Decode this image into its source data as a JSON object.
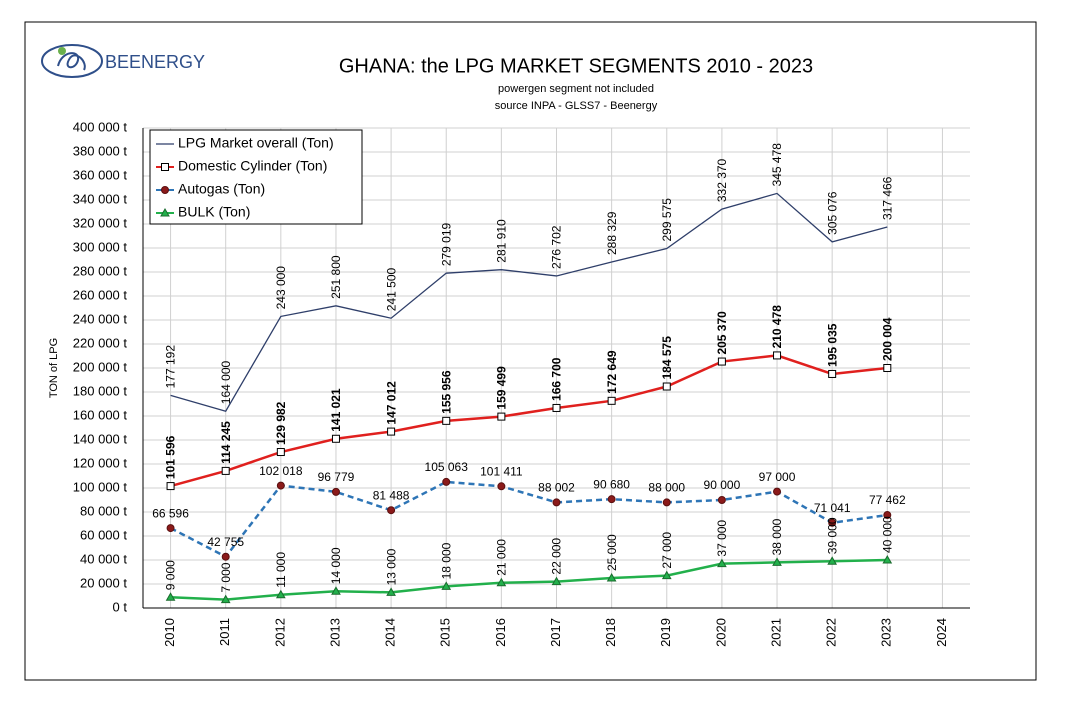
{
  "brand": "BEENERGY",
  "chart_data": {
    "type": "line",
    "title": "GHANA: the LPG MARKET SEGMENTS 2010 - 2023",
    "subtitle": "powergen segment not included",
    "source": "source INPA - GLSS7 - Beenergy",
    "ylabel": "TON of LPG",
    "categories": [
      "2010",
      "2011",
      "2012",
      "2013",
      "2014",
      "2015",
      "2016",
      "2017",
      "2018",
      "2019",
      "2020",
      "2021",
      "2022",
      "2023",
      "2024"
    ],
    "ylim": [
      0,
      400000
    ],
    "yticks": [
      {
        "value": 0,
        "label": "0 t"
      },
      {
        "value": 20000,
        "label": "20 000 t"
      },
      {
        "value": 40000,
        "label": "40 000 t"
      },
      {
        "value": 60000,
        "label": "60 000 t"
      },
      {
        "value": 80000,
        "label": "80 000 t"
      },
      {
        "value": 100000,
        "label": "100 000 t"
      },
      {
        "value": 120000,
        "label": "120 000 t"
      },
      {
        "value": 140000,
        "label": "140 000 t"
      },
      {
        "value": 160000,
        "label": "160 000 t"
      },
      {
        "value": 180000,
        "label": "180 000 t"
      },
      {
        "value": 200000,
        "label": "200 000 t"
      },
      {
        "value": 220000,
        "label": "220 000 t"
      },
      {
        "value": 240000,
        "label": "240 000 t"
      },
      {
        "value": 260000,
        "label": "260 000 t"
      },
      {
        "value": 280000,
        "label": "280 000 t"
      },
      {
        "value": 300000,
        "label": "300 000 t"
      },
      {
        "value": 320000,
        "label": "320 000 t"
      },
      {
        "value": 340000,
        "label": "340 000 t"
      },
      {
        "value": 360000,
        "label": "360 000 t"
      },
      {
        "value": 380000,
        "label": "380 000 t"
      },
      {
        "value": 400000,
        "label": "400 000 t"
      }
    ],
    "grid": true,
    "legend": "upper left",
    "series": [
      {
        "name": "LPG Market overall (Ton)",
        "color": "#2f3f6a",
        "marker": "none",
        "line_style": "solid",
        "values": [
          177192,
          164000,
          243000,
          251800,
          241500,
          279019,
          281910,
          276702,
          288329,
          299575,
          332370,
          345478,
          305076,
          317466,
          null
        ],
        "value_labels": [
          "177 192",
          "164 000",
          "243 000",
          "251 800",
          "241 500",
          "279 019",
          "281 910",
          "276 702",
          "288 329",
          "299 575",
          "332 370",
          "345 478",
          "305 076",
          "317 466",
          null
        ]
      },
      {
        "name": "Domestic Cylinder (Ton)",
        "color": "#e0201e",
        "marker": "square",
        "line_style": "solid",
        "values": [
          101596,
          114245,
          129982,
          141021,
          147012,
          155956,
          159499,
          166700,
          172649,
          184575,
          205370,
          210478,
          195035,
          200004,
          null
        ],
        "value_labels": [
          "101 596",
          "114 245",
          "129 982",
          "141 021",
          "147 012",
          "155 956",
          "159 499",
          "166 700",
          "172 649",
          "184 575",
          "205 370",
          "210 478",
          "195 035",
          "200 004",
          null
        ]
      },
      {
        "name": "Autogas (Ton)",
        "color": "#2e75b6",
        "marker": "circle",
        "line_style": "dashed",
        "values": [
          66596,
          42755,
          102018,
          96779,
          81488,
          105063,
          101411,
          88002,
          90680,
          88000,
          90000,
          97000,
          71041,
          77462,
          null
        ],
        "value_labels": [
          "66 596",
          "42 755",
          "102 018",
          "96 779",
          "81 488",
          "105 063",
          "101 411",
          "88 002",
          "90 680",
          "88 000",
          "90 000",
          "97 000",
          "71 041",
          "77 462",
          null
        ]
      },
      {
        "name": "BULK (Ton)",
        "color": "#22b04b",
        "marker": "triangle",
        "line_style": "solid",
        "values": [
          9000,
          7000,
          11000,
          14000,
          13000,
          18000,
          21000,
          22000,
          25000,
          27000,
          37000,
          38000,
          39000,
          40000,
          null
        ],
        "value_labels": [
          "9 000",
          "7 000",
          "11 000",
          "14 000",
          "13 000",
          "18 000",
          "21 000",
          "22 000",
          "25 000",
          "27 000",
          "37 000",
          "38 000",
          "39 000",
          "40 000",
          null
        ]
      }
    ]
  }
}
